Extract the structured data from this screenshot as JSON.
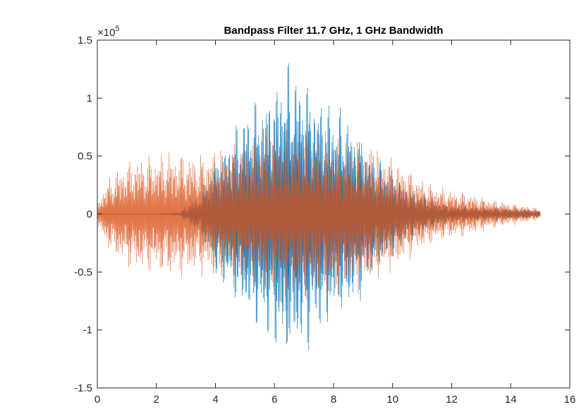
{
  "chart_data": {
    "type": "line",
    "title": "Bandpass Filter 11.7 GHz, 1 GHz Bandwidth",
    "xlabel": "",
    "ylabel": "",
    "xlim": [
      0,
      16
    ],
    "ylim": [
      -1.5,
      1.5
    ],
    "x_ticks": [
      0,
      2,
      4,
      6,
      8,
      10,
      12,
      14,
      16
    ],
    "y_ticks": [
      -1.5,
      -1,
      -0.5,
      0,
      0.5,
      1,
      1.5
    ],
    "x_tick_labels": [
      "0",
      "2",
      "4",
      "6",
      "8",
      "10",
      "12",
      "14",
      "16"
    ],
    "y_tick_labels": [
      "-1.5",
      "-1",
      "-0.5",
      "0",
      "0.5",
      "1",
      "1.5"
    ],
    "y_exponent": {
      "base": "×10",
      "power": "5"
    },
    "grid": false,
    "series": [
      {
        "color": "#0072BD",
        "envelope": {
          "x": [
            0.0,
            2.0,
            2.4,
            2.8,
            3.0,
            3.5,
            4.0,
            4.5,
            5.0,
            5.5,
            6.0,
            6.3,
            6.6,
            7.0,
            7.5,
            8.0,
            8.5,
            9.0,
            9.5,
            10.0,
            10.5,
            11.0,
            11.5,
            12.0,
            12.5,
            13.0,
            13.5,
            14.0,
            14.5,
            15.0
          ],
          "amp": [
            0.001,
            0.003,
            0.006,
            0.02,
            0.08,
            0.2,
            0.55,
            0.72,
            0.95,
            1.08,
            1.2,
            1.4,
            1.35,
            1.28,
            1.1,
            1.0,
            0.9,
            0.72,
            0.5,
            0.4,
            0.25,
            0.18,
            0.12,
            0.08,
            0.07,
            0.06,
            0.06,
            0.05,
            0.05,
            0.03
          ]
        }
      },
      {
        "color": "#D95319",
        "envelope": {
          "x": [
            0.0,
            0.3,
            0.8,
            1.3,
            2.0,
            2.5,
            3.0,
            3.5,
            4.0,
            5.0,
            6.0,
            7.0,
            8.0,
            9.0,
            10.0,
            10.5,
            11.0,
            11.5,
            12.0,
            12.5,
            13.0,
            13.5,
            14.0,
            14.5,
            15.0
          ],
          "amp": [
            0.1,
            0.3,
            0.45,
            0.52,
            0.55,
            0.58,
            0.56,
            0.55,
            0.6,
            0.68,
            0.75,
            0.8,
            0.75,
            0.68,
            0.52,
            0.42,
            0.32,
            0.26,
            0.22,
            0.2,
            0.16,
            0.13,
            0.1,
            0.08,
            0.05
          ]
        }
      }
    ]
  }
}
